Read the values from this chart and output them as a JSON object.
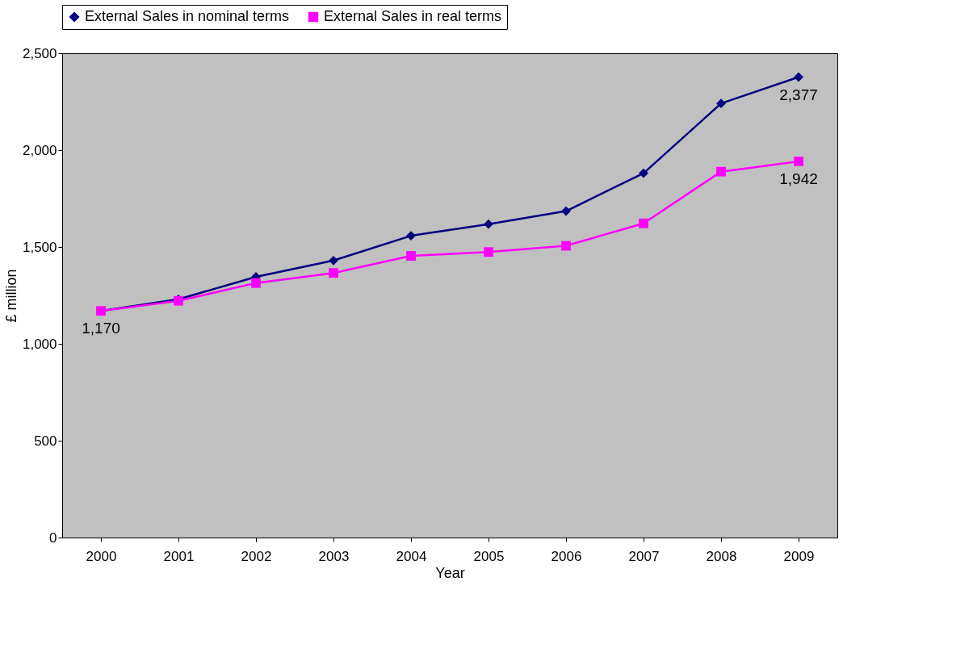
{
  "chart_data": {
    "type": "line",
    "xlabel": "Year",
    "ylabel": "£ million",
    "categories": [
      "2000",
      "2001",
      "2002",
      "2003",
      "2004",
      "2005",
      "2006",
      "2007",
      "2008",
      "2009"
    ],
    "series": [
      {
        "name": "External Sales in nominal terms",
        "color": "#000080",
        "marker": "diamond",
        "values": [
          1170,
          1230,
          1346,
          1430,
          1558,
          1618,
          1685,
          1881,
          2241,
          2377
        ],
        "value_labels": [
          null,
          null,
          null,
          null,
          null,
          null,
          null,
          null,
          null,
          "2,377"
        ]
      },
      {
        "name": "External Sales in real terms",
        "color": "#ff00ff",
        "marker": "square",
        "values": [
          1170,
          1222,
          1314,
          1366,
          1454,
          1474,
          1506,
          1622,
          1889,
          1942
        ],
        "value_labels": [
          "1,170",
          null,
          null,
          null,
          null,
          null,
          null,
          null,
          null,
          "1,942"
        ]
      }
    ],
    "ylim": [
      0,
      2500
    ],
    "yticks": [
      0,
      {
        "value": 500,
        "label": "500"
      },
      {
        "value": 1000,
        "label": "1,000"
      },
      {
        "value": 1500,
        "label": "1,500"
      },
      {
        "value": 2000,
        "label": "2,000"
      },
      {
        "value": 2500,
        "label": "2,500"
      }
    ],
    "grid": false,
    "legend": "top"
  }
}
